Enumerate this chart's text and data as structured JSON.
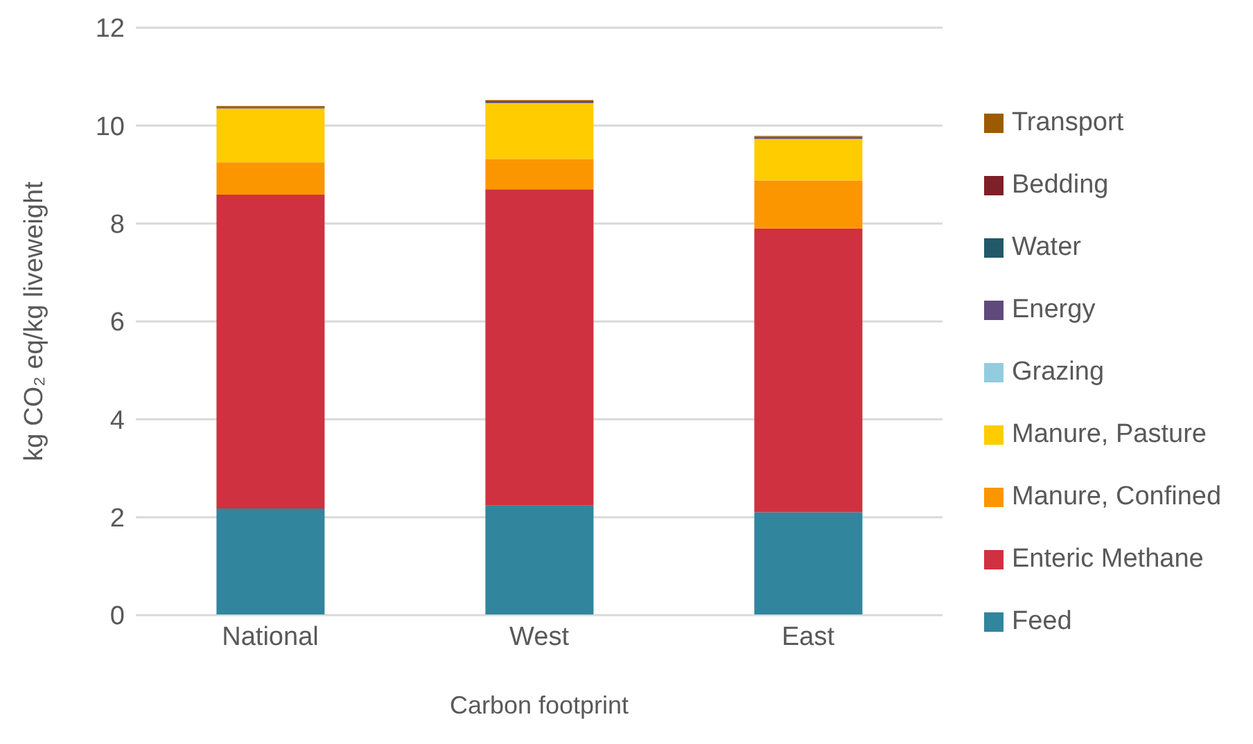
{
  "chart_data": {
    "type": "bar",
    "stacked": true,
    "ylabel": "kg CO₂ eq/kg liveweight",
    "xlabel": "Carbon footprint",
    "categories": [
      "National",
      "West",
      "East"
    ],
    "ylim": [
      0,
      12
    ],
    "yticks": [
      0,
      2,
      4,
      6,
      8,
      10,
      12
    ],
    "grid": "y",
    "legend": "right",
    "series": [
      {
        "name": "Feed",
        "color": "#31859c",
        "values": [
          2.18,
          2.24,
          2.1
        ]
      },
      {
        "name": "Enteric Methane",
        "color": "#cf3140",
        "values": [
          6.41,
          6.46,
          5.8
        ]
      },
      {
        "name": "Manure, Confined",
        "color": "#fb9600",
        "values": [
          0.66,
          0.62,
          0.98
        ]
      },
      {
        "name": "Manure, Pasture",
        "color": "#ffcc00",
        "values": [
          1.1,
          1.14,
          0.85
        ]
      },
      {
        "name": "Grazing",
        "color": "#93cddd",
        "values": [
          null,
          null,
          null
        ]
      },
      {
        "name": "Energy",
        "color": "#604a7b",
        "values": [
          0.03,
          0.04,
          0.04
        ]
      },
      {
        "name": "Water",
        "color": "#215968",
        "values": [
          null,
          null,
          null
        ]
      },
      {
        "name": "Bedding",
        "color": "#7f1f27",
        "values": [
          null,
          null,
          null
        ]
      },
      {
        "name": "Transport",
        "color": "#9c5b00",
        "values": [
          0.02,
          0.02,
          0.02
        ]
      }
    ]
  }
}
